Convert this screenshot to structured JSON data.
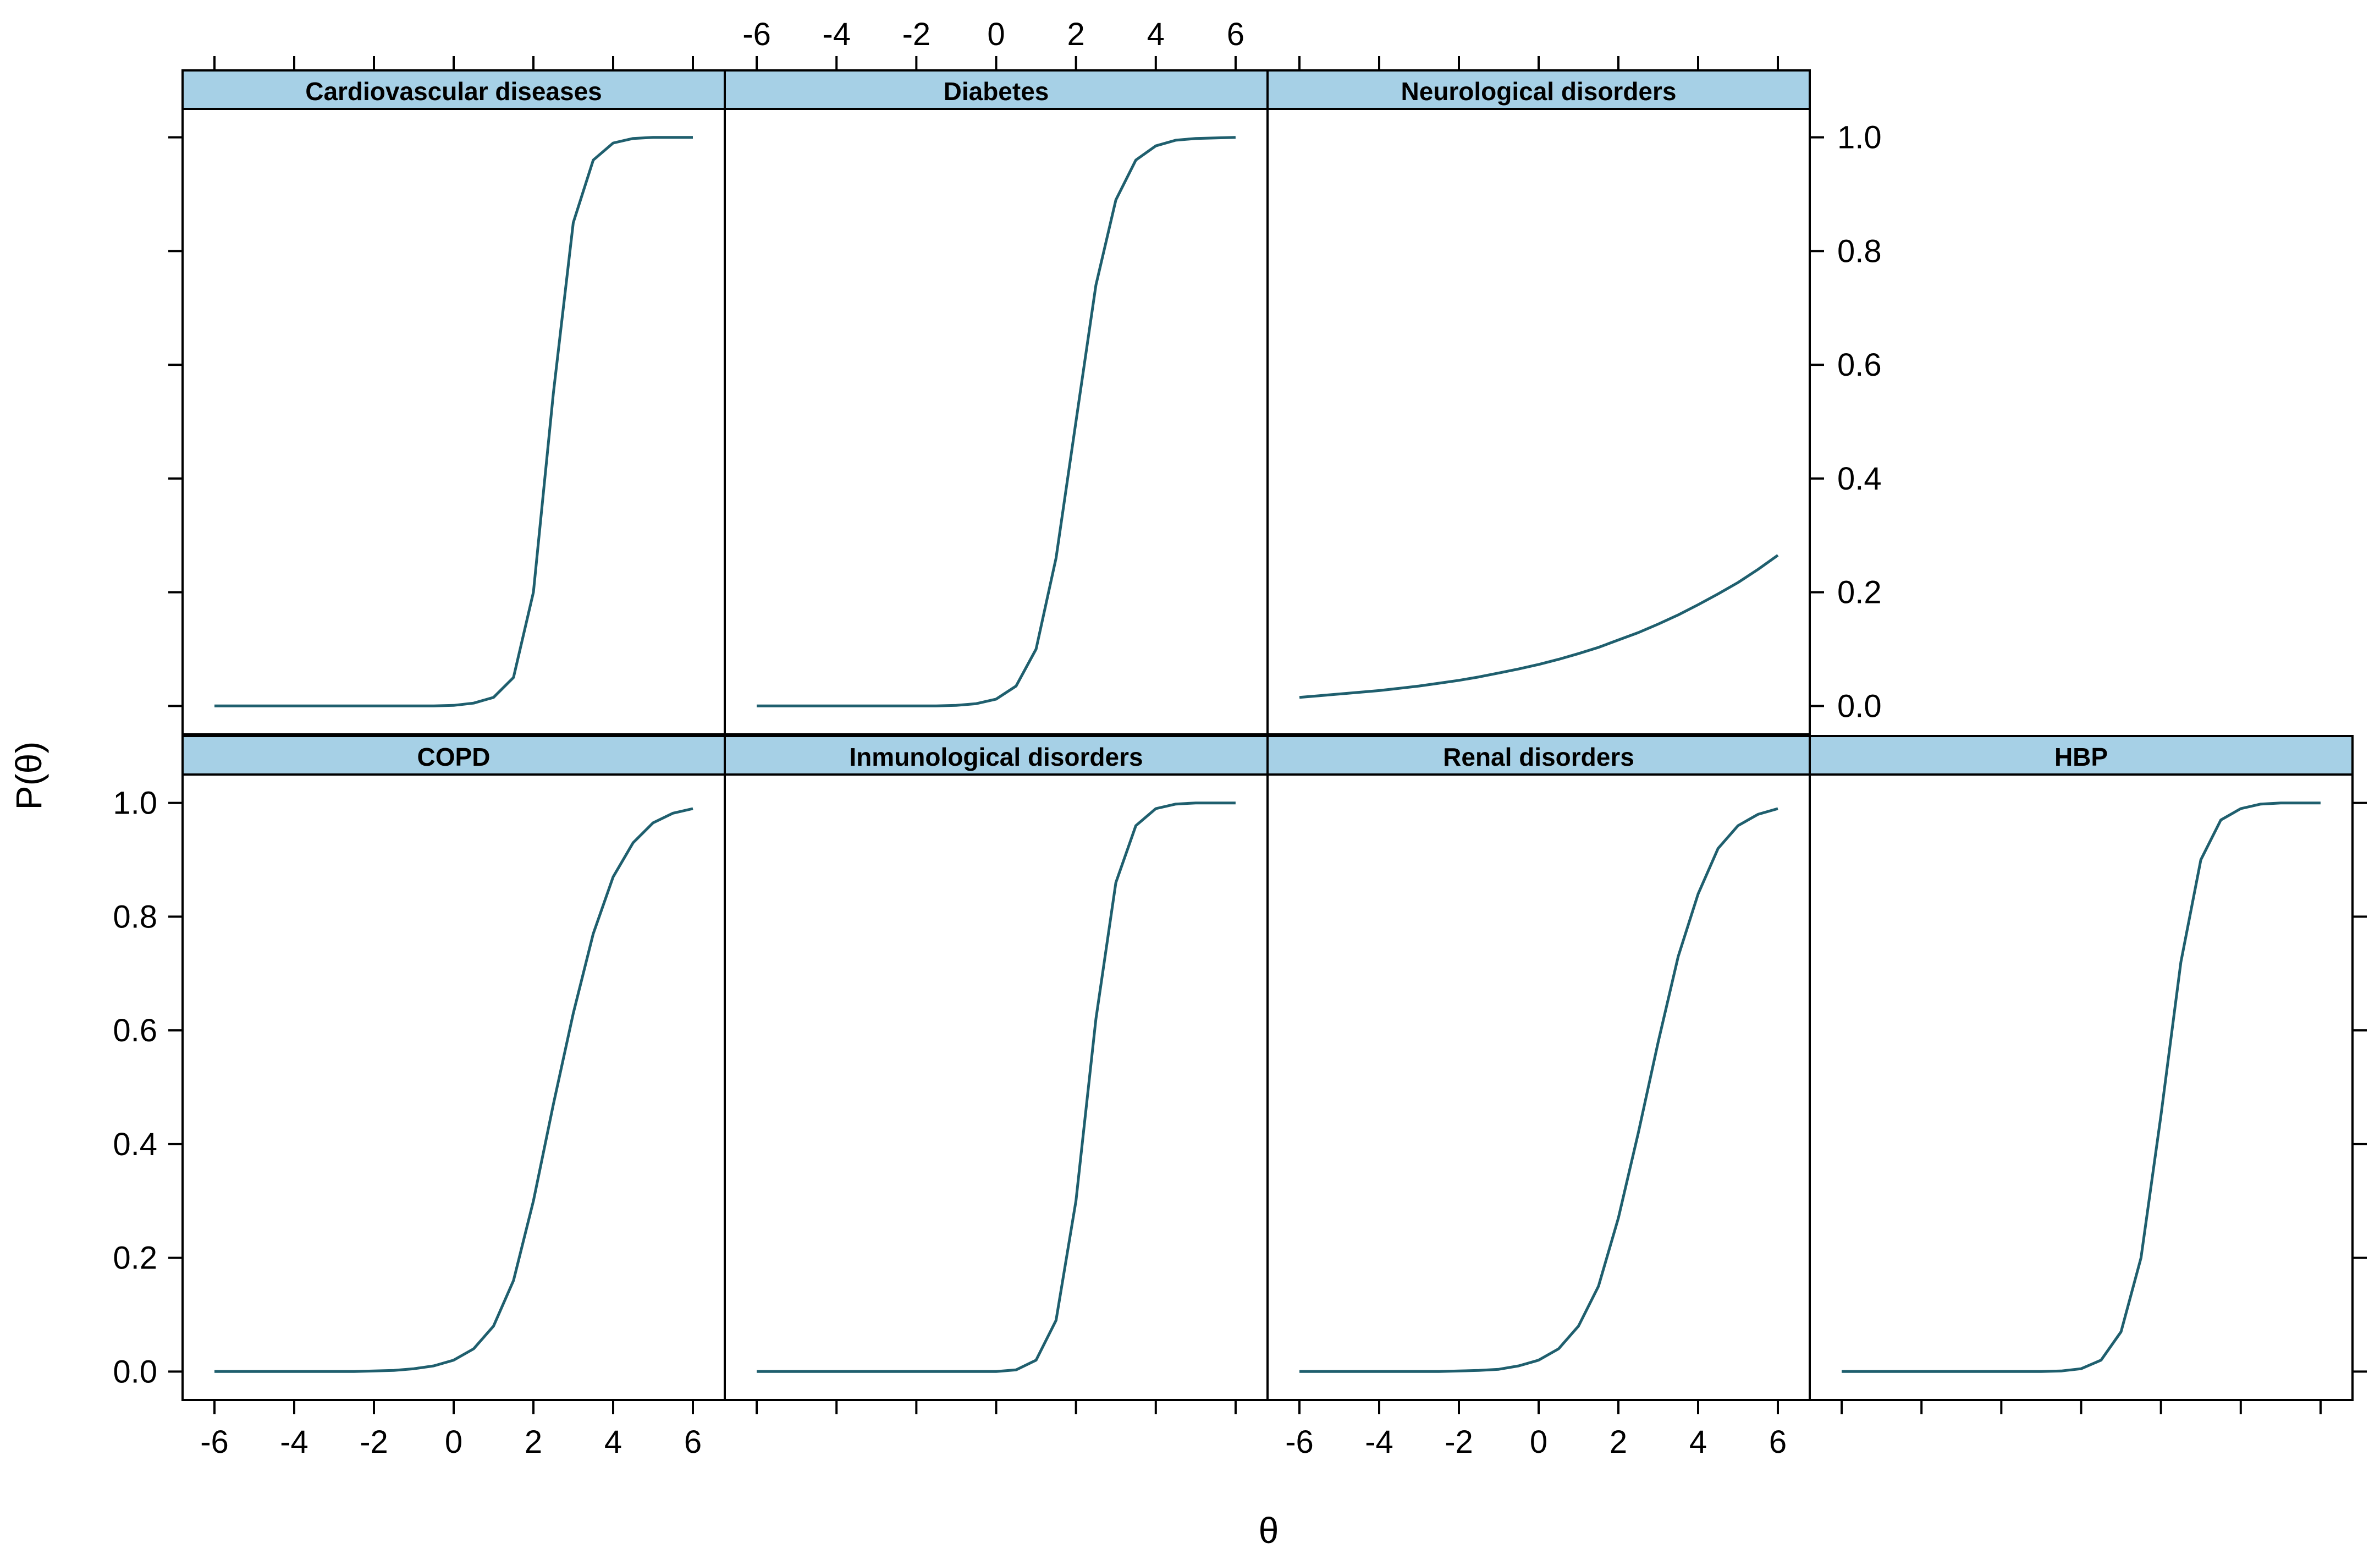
{
  "chart_data": {
    "type": "line",
    "layout": "lattice 4 columns x 2 rows",
    "ylabel": "P(θ)",
    "xlabel": "θ",
    "xlim": [
      -6.8,
      6.8
    ],
    "ylim": [
      -0.05,
      1.05
    ],
    "x_ticks": [
      -6,
      -4,
      -2,
      0,
      2,
      4,
      6
    ],
    "x_tick_labels": [
      "-6",
      "-4",
      "-2",
      "0",
      "2",
      "4",
      "6"
    ],
    "y_ticks": [
      0.0,
      0.2,
      0.4,
      0.6,
      0.8,
      1.0
    ],
    "y_tick_labels": [
      "0.0",
      "0.2",
      "0.4",
      "0.6",
      "0.8",
      "1.0"
    ],
    "line_color": "#1f5f6e",
    "strip_color": "#a6d0e6",
    "x": [
      -6,
      -5.5,
      -5,
      -4.5,
      -4,
      -3.5,
      -3,
      -2.5,
      -2,
      -1.5,
      -1,
      -0.5,
      0,
      0.5,
      1,
      1.5,
      2,
      2.5,
      3,
      3.5,
      4,
      4.5,
      5,
      5.5,
      6
    ],
    "panels": [
      {
        "name": "Cardiovascular diseases",
        "row": 1,
        "col": 1,
        "values": [
          0,
          0,
          0,
          0,
          0,
          0,
          0,
          0,
          0,
          0,
          0,
          0,
          0.001,
          0.005,
          0.015,
          0.05,
          0.2,
          0.55,
          0.85,
          0.96,
          0.99,
          0.998,
          1.0,
          1.0,
          1.0
        ]
      },
      {
        "name": "Diabetes",
        "row": 1,
        "col": 2,
        "values": [
          0,
          0,
          0,
          0,
          0,
          0,
          0,
          0,
          0,
          0,
          0.001,
          0.004,
          0.012,
          0.035,
          0.1,
          0.26,
          0.5,
          0.74,
          0.89,
          0.96,
          0.985,
          0.995,
          0.998,
          0.999,
          1.0
        ]
      },
      {
        "name": "Neurological disorders",
        "row": 1,
        "col": 3,
        "values": [
          0.015,
          0.018,
          0.021,
          0.024,
          0.027,
          0.031,
          0.035,
          0.04,
          0.045,
          0.051,
          0.058,
          0.065,
          0.073,
          0.082,
          0.092,
          0.103,
          0.116,
          0.129,
          0.144,
          0.16,
          0.178,
          0.197,
          0.217,
          0.24,
          0.265
        ]
      },
      {
        "name": "COPD",
        "row": 2,
        "col": 1,
        "values": [
          0,
          0,
          0,
          0,
          0,
          0,
          0,
          0,
          0.001,
          0.002,
          0.005,
          0.01,
          0.02,
          0.04,
          0.08,
          0.16,
          0.3,
          0.47,
          0.63,
          0.77,
          0.87,
          0.93,
          0.965,
          0.982,
          0.99
        ]
      },
      {
        "name": "Inmunological disorders",
        "row": 2,
        "col": 2,
        "values": [
          0,
          0,
          0,
          0,
          0,
          0,
          0,
          0,
          0,
          0,
          0,
          0,
          0,
          0.003,
          0.02,
          0.09,
          0.3,
          0.62,
          0.86,
          0.96,
          0.99,
          0.998,
          1.0,
          1.0,
          1.0
        ]
      },
      {
        "name": "Renal disorders",
        "row": 2,
        "col": 3,
        "values": [
          0,
          0,
          0,
          0,
          0,
          0,
          0,
          0,
          0.001,
          0.002,
          0.004,
          0.01,
          0.02,
          0.04,
          0.08,
          0.15,
          0.27,
          0.42,
          0.58,
          0.73,
          0.84,
          0.92,
          0.96,
          0.98,
          0.99
        ]
      },
      {
        "name": "HBP",
        "row": 2,
        "col": 4,
        "values": [
          0,
          0,
          0,
          0,
          0,
          0,
          0,
          0,
          0,
          0,
          0,
          0.001,
          0.005,
          0.02,
          0.07,
          0.2,
          0.45,
          0.72,
          0.9,
          0.97,
          0.99,
          0.998,
          1.0,
          1.0,
          1.0
        ]
      }
    ]
  }
}
